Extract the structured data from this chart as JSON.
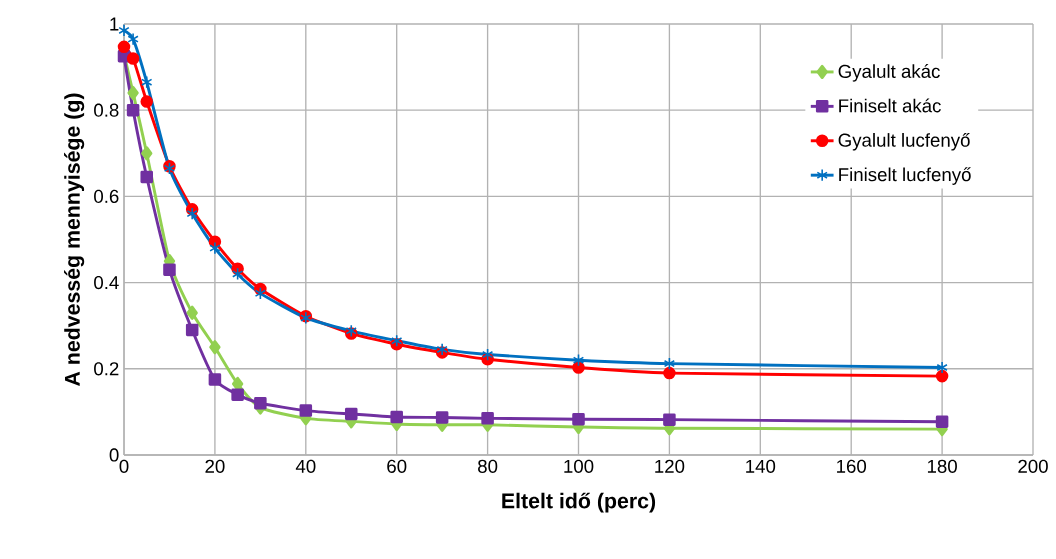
{
  "chart_data": {
    "type": "line",
    "xlabel": "Eltelt idő (perc)",
    "ylabel": "A nedvesség mennyisége (g)",
    "x": [
      0,
      2,
      5,
      10,
      15,
      20,
      25,
      30,
      40,
      50,
      60,
      70,
      80,
      100,
      120,
      180
    ],
    "series": [
      {
        "name": "Gyalult akác",
        "color": "#92d050",
        "marker": "diamond",
        "values": [
          0.93,
          0.84,
          0.7,
          0.45,
          0.33,
          0.25,
          0.165,
          0.11,
          0.085,
          0.078,
          0.072,
          0.07,
          0.07,
          0.065,
          0.062,
          0.06
        ]
      },
      {
        "name": "Finiselt akác",
        "color": "#7030a0",
        "marker": "square",
        "values": [
          0.925,
          0.8,
          0.645,
          0.43,
          0.29,
          0.175,
          0.14,
          0.12,
          0.103,
          0.095,
          0.088,
          0.087,
          0.085,
          0.083,
          0.082,
          0.077
        ]
      },
      {
        "name": "Gyalult lucfenyő",
        "color": "#ff0000",
        "marker": "circle",
        "values": [
          0.947,
          0.92,
          0.82,
          0.67,
          0.57,
          0.495,
          0.432,
          0.385,
          0.322,
          0.282,
          0.257,
          0.238,
          0.222,
          0.203,
          0.19,
          0.183
        ]
      },
      {
        "name": "Finiselt lucfenyő",
        "color": "#0070c0",
        "marker": "cross",
        "values": [
          0.985,
          0.965,
          0.865,
          0.665,
          0.56,
          0.48,
          0.42,
          0.375,
          0.318,
          0.288,
          0.265,
          0.245,
          0.233,
          0.22,
          0.212,
          0.203
        ]
      }
    ],
    "xlim": [
      0,
      200
    ],
    "xticks": [
      0,
      20,
      40,
      60,
      80,
      100,
      120,
      140,
      160,
      180,
      200
    ],
    "ylim": [
      0,
      1
    ],
    "yticks": [
      0,
      0.2,
      0.4,
      0.6,
      0.8,
      1
    ],
    "grid": true,
    "legend": "top right",
    "line_style": "solid"
  }
}
